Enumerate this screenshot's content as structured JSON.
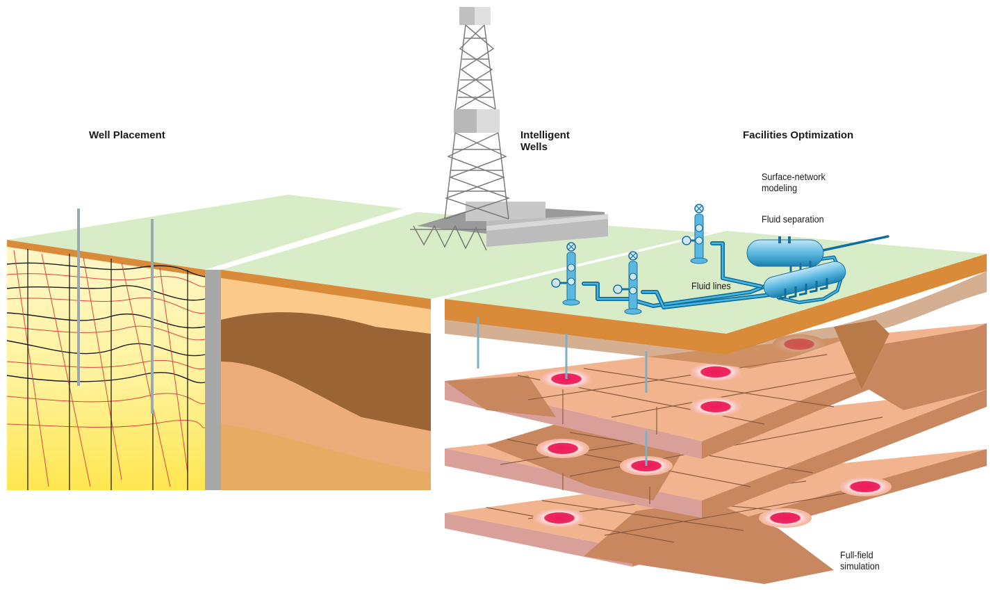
{
  "labels": {
    "well_placement": "Well Placement",
    "intelligent_wells": "Intelligent\nWells",
    "facilities_optimization": "Facilities Optimization",
    "surface_network": "Surface-network\nmodeling",
    "fluid_separation": "Fluid separation",
    "fluid_lines": "Fluid lines",
    "full_field": "Full-field\nsimulation"
  },
  "colors": {
    "surface_green": "#d8ecc8",
    "topsoil": "#d98b3a",
    "dark_earth": "#9a6434",
    "mid_earth": "#e8a878",
    "deep_earth": "#e3ab60",
    "grid_cell": "#f2b48e",
    "grid_cell_side": "#d9a09a",
    "hot_spot": "#e8184f",
    "pipe_blue": "#1a8fc0",
    "derrick_gray": "#8a8a8a",
    "seismic_yellow": "#fff07a",
    "fault_red": "#e04040"
  },
  "icons": [
    "derrick-tower",
    "wellhead-valve-tree",
    "separator-vessel",
    "fluid-pipeline"
  ]
}
